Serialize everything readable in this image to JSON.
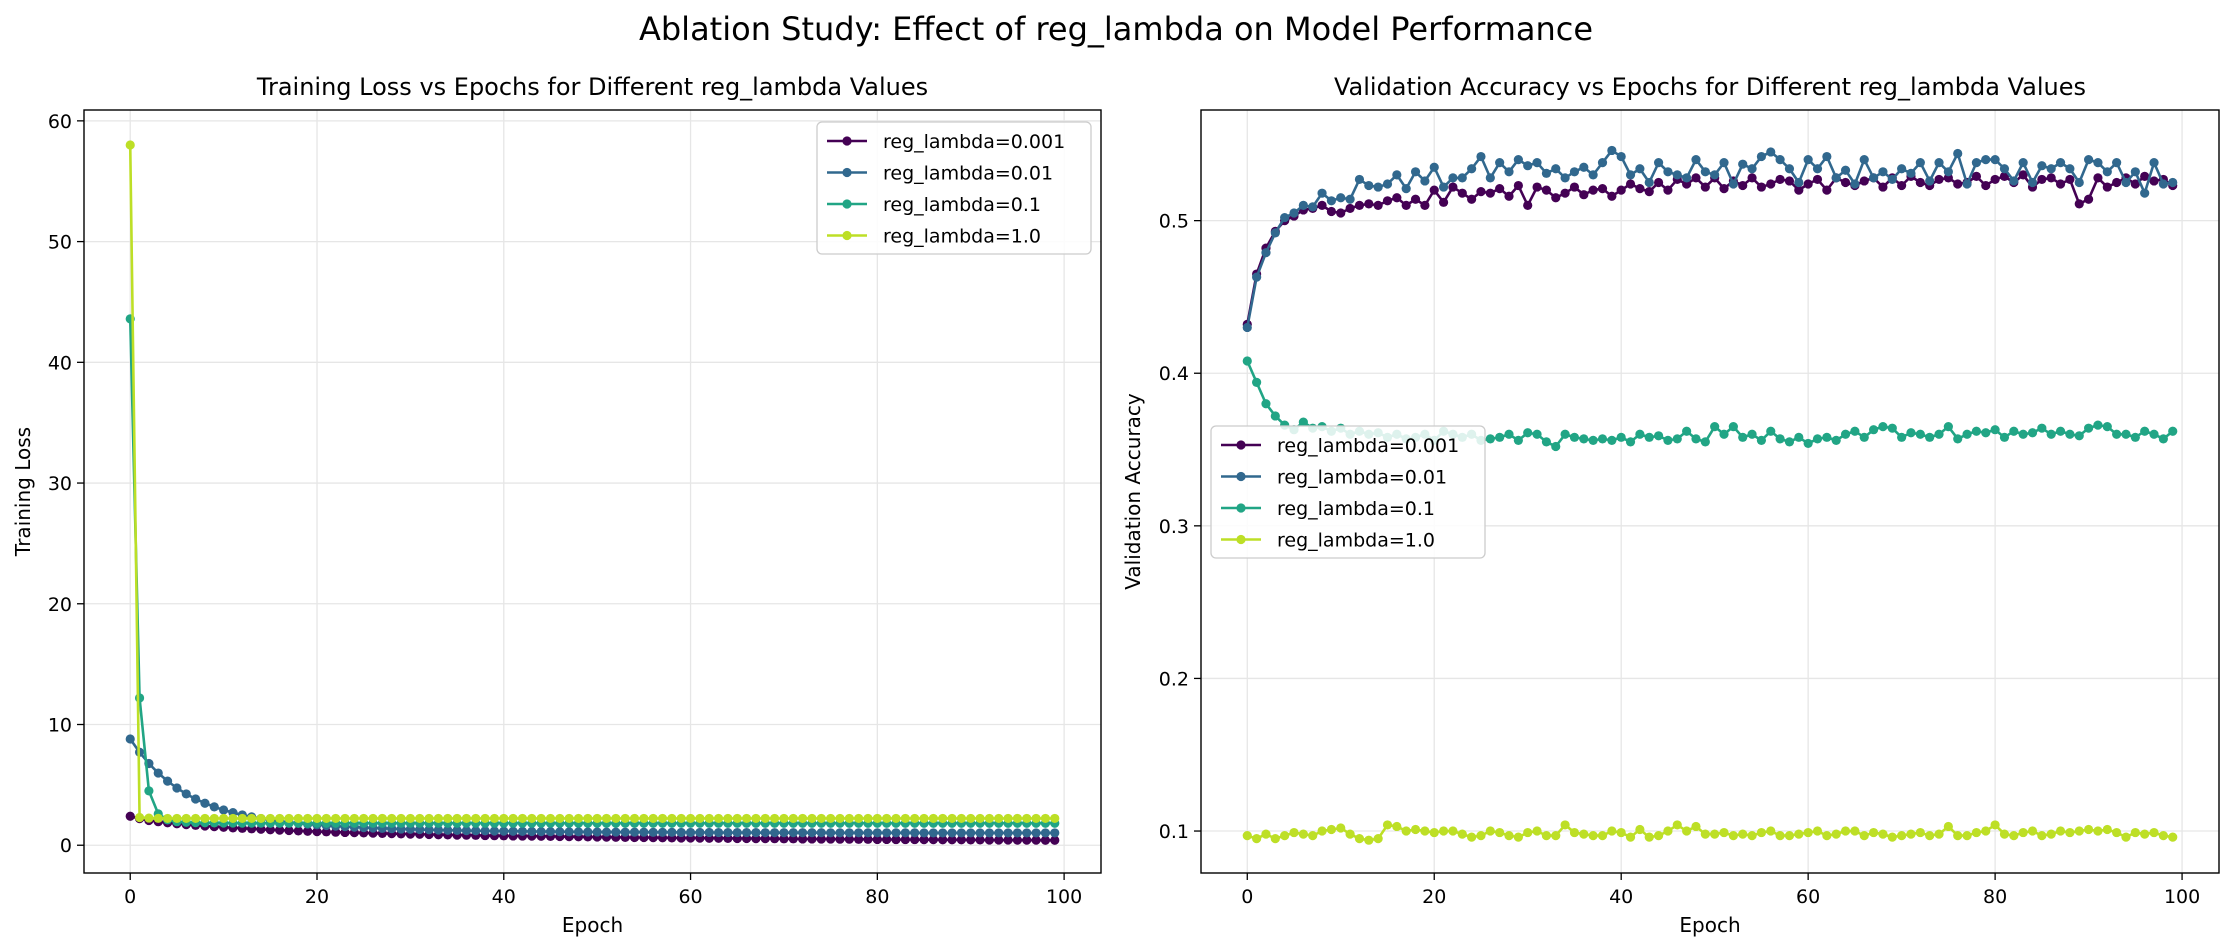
{
  "figure_title": "Ablation Study: Effect of reg_lambda on Model Performance",
  "chart_data": [
    {
      "type": "line",
      "title": "Training Loss vs Epochs for Different reg_lambda Values",
      "xlabel": "Epoch",
      "ylabel": "Training Loss",
      "xlim": [
        -4.95,
        103.95
      ],
      "ylim": [
        -2.3,
        60.9
      ],
      "xticks": [
        0,
        20,
        40,
        60,
        80,
        100
      ],
      "yticks": [
        0,
        10,
        20,
        30,
        40,
        50,
        60
      ],
      "grid": true,
      "legend_placement": "upper-right",
      "series": [
        {
          "name": "reg_lambda=0.001",
          "color": "#440154",
          "values": [
            2.4,
            2.2,
            2.05,
            1.95,
            1.86,
            1.78,
            1.71,
            1.65,
            1.59,
            1.54,
            1.49,
            1.44,
            1.4,
            1.36,
            1.32,
            1.28,
            1.25,
            1.22,
            1.19,
            1.16,
            1.13,
            1.11,
            1.08,
            1.06,
            1.04,
            1.02,
            1.0,
            0.98,
            0.96,
            0.94,
            0.92,
            0.91,
            0.89,
            0.87,
            0.86,
            0.84,
            0.83,
            0.82,
            0.8,
            0.79,
            0.78,
            0.77,
            0.76,
            0.75,
            0.74,
            0.73,
            0.72,
            0.71,
            0.7,
            0.69,
            0.68,
            0.67,
            0.66,
            0.65,
            0.64,
            0.64,
            0.63,
            0.62,
            0.61,
            0.6,
            0.6,
            0.59,
            0.58,
            0.58,
            0.57,
            0.56,
            0.56,
            0.55,
            0.55,
            0.54,
            0.53,
            0.53,
            0.52,
            0.52,
            0.51,
            0.51,
            0.5,
            0.5,
            0.49,
            0.49,
            0.48,
            0.48,
            0.47,
            0.47,
            0.47,
            0.46,
            0.46,
            0.45,
            0.45,
            0.45,
            0.44,
            0.44,
            0.43,
            0.43,
            0.43,
            0.42,
            0.42,
            0.42,
            0.41,
            0.41
          ]
        },
        {
          "name": "reg_lambda=0.01",
          "color": "#31688e",
          "values": [
            8.8,
            7.7,
            6.77,
            5.98,
            5.31,
            4.74,
            4.25,
            3.83,
            3.48,
            3.18,
            2.92,
            2.7,
            2.51,
            2.35,
            2.21,
            2.09,
            1.99,
            1.9,
            1.82,
            1.75,
            1.69,
            1.63,
            1.58,
            1.54,
            1.5,
            1.46,
            1.43,
            1.4,
            1.37,
            1.34,
            1.32,
            1.3,
            1.28,
            1.26,
            1.24,
            1.23,
            1.21,
            1.2,
            1.19,
            1.18,
            1.17,
            1.16,
            1.15,
            1.14,
            1.13,
            1.13,
            1.12,
            1.11,
            1.11,
            1.1,
            1.1,
            1.09,
            1.09,
            1.08,
            1.08,
            1.08,
            1.07,
            1.07,
            1.07,
            1.06,
            1.06,
            1.06,
            1.06,
            1.05,
            1.05,
            1.05,
            1.05,
            1.05,
            1.04,
            1.04,
            1.04,
            1.04,
            1.04,
            1.04,
            1.04,
            1.03,
            1.03,
            1.03,
            1.03,
            1.03,
            1.03,
            1.03,
            1.03,
            1.03,
            1.03,
            1.02,
            1.02,
            1.02,
            1.02,
            1.02,
            1.02,
            1.02,
            1.02,
            1.02,
            1.02,
            1.02,
            1.02,
            1.02,
            1.02,
            1.02
          ]
        },
        {
          "name": "reg_lambda=0.1",
          "color": "#21a585",
          "values": [
            43.6,
            12.2,
            4.5,
            2.6,
            2.1,
            1.95,
            1.9,
            1.87,
            1.86,
            1.85,
            1.84,
            1.84,
            1.83,
            1.83,
            1.83,
            1.82,
            1.82,
            1.82,
            1.82,
            1.82,
            1.82,
            1.82,
            1.82,
            1.82,
            1.82,
            1.82,
            1.82,
            1.82,
            1.82,
            1.82,
            1.82,
            1.82,
            1.82,
            1.82,
            1.82,
            1.82,
            1.82,
            1.82,
            1.82,
            1.82,
            1.82,
            1.82,
            1.82,
            1.82,
            1.82,
            1.82,
            1.82,
            1.82,
            1.82,
            1.82,
            1.82,
            1.82,
            1.82,
            1.82,
            1.82,
            1.82,
            1.82,
            1.82,
            1.82,
            1.82,
            1.82,
            1.82,
            1.82,
            1.82,
            1.82,
            1.82,
            1.82,
            1.82,
            1.82,
            1.82,
            1.82,
            1.82,
            1.82,
            1.82,
            1.82,
            1.82,
            1.82,
            1.82,
            1.82,
            1.82,
            1.82,
            1.82,
            1.82,
            1.82,
            1.82,
            1.82,
            1.82,
            1.82,
            1.82,
            1.82,
            1.82,
            1.82,
            1.82,
            1.82,
            1.82,
            1.82,
            1.82,
            1.82,
            1.82,
            1.82
          ]
        },
        {
          "name": "reg_lambda=1.0",
          "color": "#bddf26",
          "values": [
            58.0,
            2.3,
            2.25,
            2.23,
            2.22,
            2.22,
            2.22,
            2.22,
            2.22,
            2.22,
            2.22,
            2.22,
            2.22,
            2.22,
            2.22,
            2.22,
            2.22,
            2.22,
            2.22,
            2.22,
            2.22,
            2.22,
            2.22,
            2.22,
            2.22,
            2.22,
            2.22,
            2.22,
            2.22,
            2.22,
            2.22,
            2.22,
            2.22,
            2.22,
            2.22,
            2.22,
            2.22,
            2.22,
            2.22,
            2.22,
            2.22,
            2.22,
            2.22,
            2.22,
            2.22,
            2.22,
            2.22,
            2.22,
            2.22,
            2.22,
            2.22,
            2.22,
            2.22,
            2.22,
            2.22,
            2.22,
            2.22,
            2.22,
            2.22,
            2.22,
            2.22,
            2.22,
            2.22,
            2.22,
            2.22,
            2.22,
            2.22,
            2.22,
            2.22,
            2.22,
            2.22,
            2.22,
            2.22,
            2.22,
            2.22,
            2.22,
            2.22,
            2.22,
            2.22,
            2.22,
            2.22,
            2.22,
            2.22,
            2.22,
            2.22,
            2.22,
            2.22,
            2.22,
            2.22,
            2.22,
            2.22,
            2.22,
            2.22,
            2.22,
            2.22,
            2.22,
            2.22,
            2.22,
            2.22,
            2.22
          ]
        }
      ]
    },
    {
      "type": "line",
      "title": "Validation Accuracy vs Epochs for Different reg_lambda Values",
      "xlabel": "Epoch",
      "ylabel": "Validation Accuracy",
      "xlim": [
        -4.95,
        103.95
      ],
      "ylim": [
        0.0725,
        0.5725
      ],
      "xticks": [
        0,
        20,
        40,
        60,
        80,
        100
      ],
      "yticks": [
        0.1,
        0.2,
        0.3,
        0.4,
        0.5
      ],
      "grid": true,
      "legend_placement": "center-left",
      "series": [
        {
          "name": "reg_lambda=0.001",
          "color": "#440154",
          "values": [
            0.432,
            0.465,
            0.482,
            0.493,
            0.5,
            0.503,
            0.507,
            0.508,
            0.51,
            0.506,
            0.505,
            0.508,
            0.51,
            0.511,
            0.51,
            0.513,
            0.515,
            0.51,
            0.514,
            0.51,
            0.52,
            0.512,
            0.522,
            0.518,
            0.514,
            0.519,
            0.518,
            0.521,
            0.516,
            0.523,
            0.51,
            0.522,
            0.52,
            0.515,
            0.518,
            0.522,
            0.517,
            0.52,
            0.521,
            0.516,
            0.52,
            0.524,
            0.521,
            0.519,
            0.525,
            0.52,
            0.527,
            0.524,
            0.528,
            0.522,
            0.528,
            0.521,
            0.526,
            0.523,
            0.528,
            0.522,
            0.524,
            0.527,
            0.526,
            0.52,
            0.524,
            0.527,
            0.52,
            0.528,
            0.525,
            0.523,
            0.526,
            0.528,
            0.522,
            0.528,
            0.523,
            0.529,
            0.525,
            0.523,
            0.527,
            0.528,
            0.524,
            0.525,
            0.529,
            0.523,
            0.527,
            0.529,
            0.525,
            0.53,
            0.522,
            0.527,
            0.528,
            0.524,
            0.527,
            0.511,
            0.514,
            0.528,
            0.522,
            0.525,
            0.528,
            0.524,
            0.529,
            0.526,
            0.527,
            0.523
          ]
        },
        {
          "name": "reg_lambda=0.01",
          "color": "#31688e",
          "values": [
            0.43,
            0.463,
            0.479,
            0.492,
            0.502,
            0.505,
            0.51,
            0.509,
            0.518,
            0.513,
            0.515,
            0.514,
            0.527,
            0.523,
            0.522,
            0.524,
            0.53,
            0.521,
            0.532,
            0.526,
            0.535,
            0.522,
            0.528,
            0.528,
            0.534,
            0.542,
            0.528,
            0.538,
            0.532,
            0.54,
            0.536,
            0.538,
            0.531,
            0.534,
            0.528,
            0.532,
            0.535,
            0.53,
            0.538,
            0.546,
            0.542,
            0.53,
            0.534,
            0.525,
            0.538,
            0.532,
            0.53,
            0.528,
            0.54,
            0.532,
            0.53,
            0.538,
            0.524,
            0.537,
            0.534,
            0.542,
            0.545,
            0.54,
            0.534,
            0.525,
            0.54,
            0.534,
            0.542,
            0.528,
            0.533,
            0.524,
            0.54,
            0.528,
            0.532,
            0.527,
            0.534,
            0.531,
            0.538,
            0.526,
            0.538,
            0.532,
            0.544,
            0.524,
            0.538,
            0.54,
            0.54,
            0.534,
            0.526,
            0.538,
            0.525,
            0.536,
            0.534,
            0.538,
            0.534,
            0.525,
            0.54,
            0.538,
            0.532,
            0.538,
            0.525,
            0.532,
            0.518,
            0.538,
            0.524,
            0.525
          ]
        },
        {
          "name": "reg_lambda=0.1",
          "color": "#21a585",
          "values": [
            0.408,
            0.394,
            0.38,
            0.372,
            0.366,
            0.363,
            0.368,
            0.364,
            0.365,
            0.362,
            0.364,
            0.36,
            0.362,
            0.36,
            0.361,
            0.358,
            0.36,
            0.357,
            0.358,
            0.36,
            0.356,
            0.362,
            0.36,
            0.358,
            0.36,
            0.356,
            0.357,
            0.358,
            0.36,
            0.356,
            0.361,
            0.36,
            0.355,
            0.352,
            0.36,
            0.358,
            0.357,
            0.356,
            0.357,
            0.356,
            0.358,
            0.355,
            0.36,
            0.358,
            0.359,
            0.356,
            0.357,
            0.362,
            0.357,
            0.355,
            0.365,
            0.36,
            0.365,
            0.358,
            0.36,
            0.356,
            0.362,
            0.357,
            0.355,
            0.358,
            0.354,
            0.357,
            0.358,
            0.356,
            0.36,
            0.362,
            0.358,
            0.363,
            0.365,
            0.364,
            0.358,
            0.361,
            0.36,
            0.358,
            0.36,
            0.365,
            0.357,
            0.36,
            0.362,
            0.361,
            0.363,
            0.358,
            0.362,
            0.36,
            0.361,
            0.364,
            0.36,
            0.362,
            0.36,
            0.359,
            0.364,
            0.366,
            0.365,
            0.36,
            0.36,
            0.358,
            0.362,
            0.36,
            0.357,
            0.362
          ]
        },
        {
          "name": "reg_lambda=1.0",
          "color": "#bddf26",
          "values": [
            0.097,
            0.095,
            0.098,
            0.095,
            0.097,
            0.099,
            0.098,
            0.097,
            0.1,
            0.101,
            0.102,
            0.098,
            0.095,
            0.094,
            0.095,
            0.104,
            0.103,
            0.1,
            0.101,
            0.1,
            0.099,
            0.1,
            0.1,
            0.098,
            0.096,
            0.097,
            0.1,
            0.099,
            0.097,
            0.096,
            0.099,
            0.1,
            0.097,
            0.097,
            0.104,
            0.099,
            0.098,
            0.097,
            0.097,
            0.1,
            0.099,
            0.096,
            0.101,
            0.096,
            0.097,
            0.1,
            0.104,
            0.1,
            0.103,
            0.098,
            0.098,
            0.099,
            0.097,
            0.098,
            0.097,
            0.099,
            0.1,
            0.097,
            0.097,
            0.098,
            0.099,
            0.1,
            0.097,
            0.098,
            0.1,
            0.1,
            0.097,
            0.099,
            0.098,
            0.096,
            0.097,
            0.098,
            0.099,
            0.097,
            0.098,
            0.103,
            0.097,
            0.097,
            0.099,
            0.1,
            0.104,
            0.098,
            0.097,
            0.099,
            0.1,
            0.097,
            0.098,
            0.1,
            0.099,
            0.1,
            0.101,
            0.1,
            0.101,
            0.099,
            0.096,
            0.099,
            0.098,
            0.099,
            0.097,
            0.096
          ]
        }
      ]
    }
  ]
}
